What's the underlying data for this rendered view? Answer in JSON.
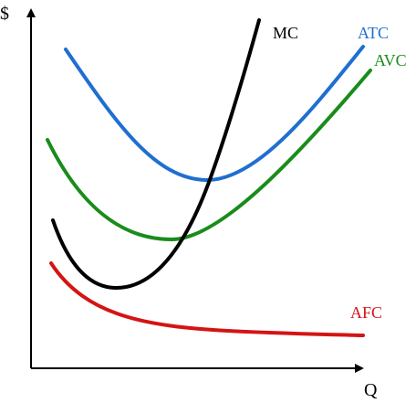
{
  "axes": {
    "y_label": "$",
    "x_label": "Q",
    "color": "#000000"
  },
  "curves": {
    "mc": {
      "label": "MC",
      "color": "#000000"
    },
    "atc": {
      "label": "ATC",
      "color": "#1f6fd1"
    },
    "avc": {
      "label": "AVC",
      "color": "#1a8c1a"
    },
    "afc": {
      "label": "AFC",
      "color": "#d41414"
    }
  }
}
